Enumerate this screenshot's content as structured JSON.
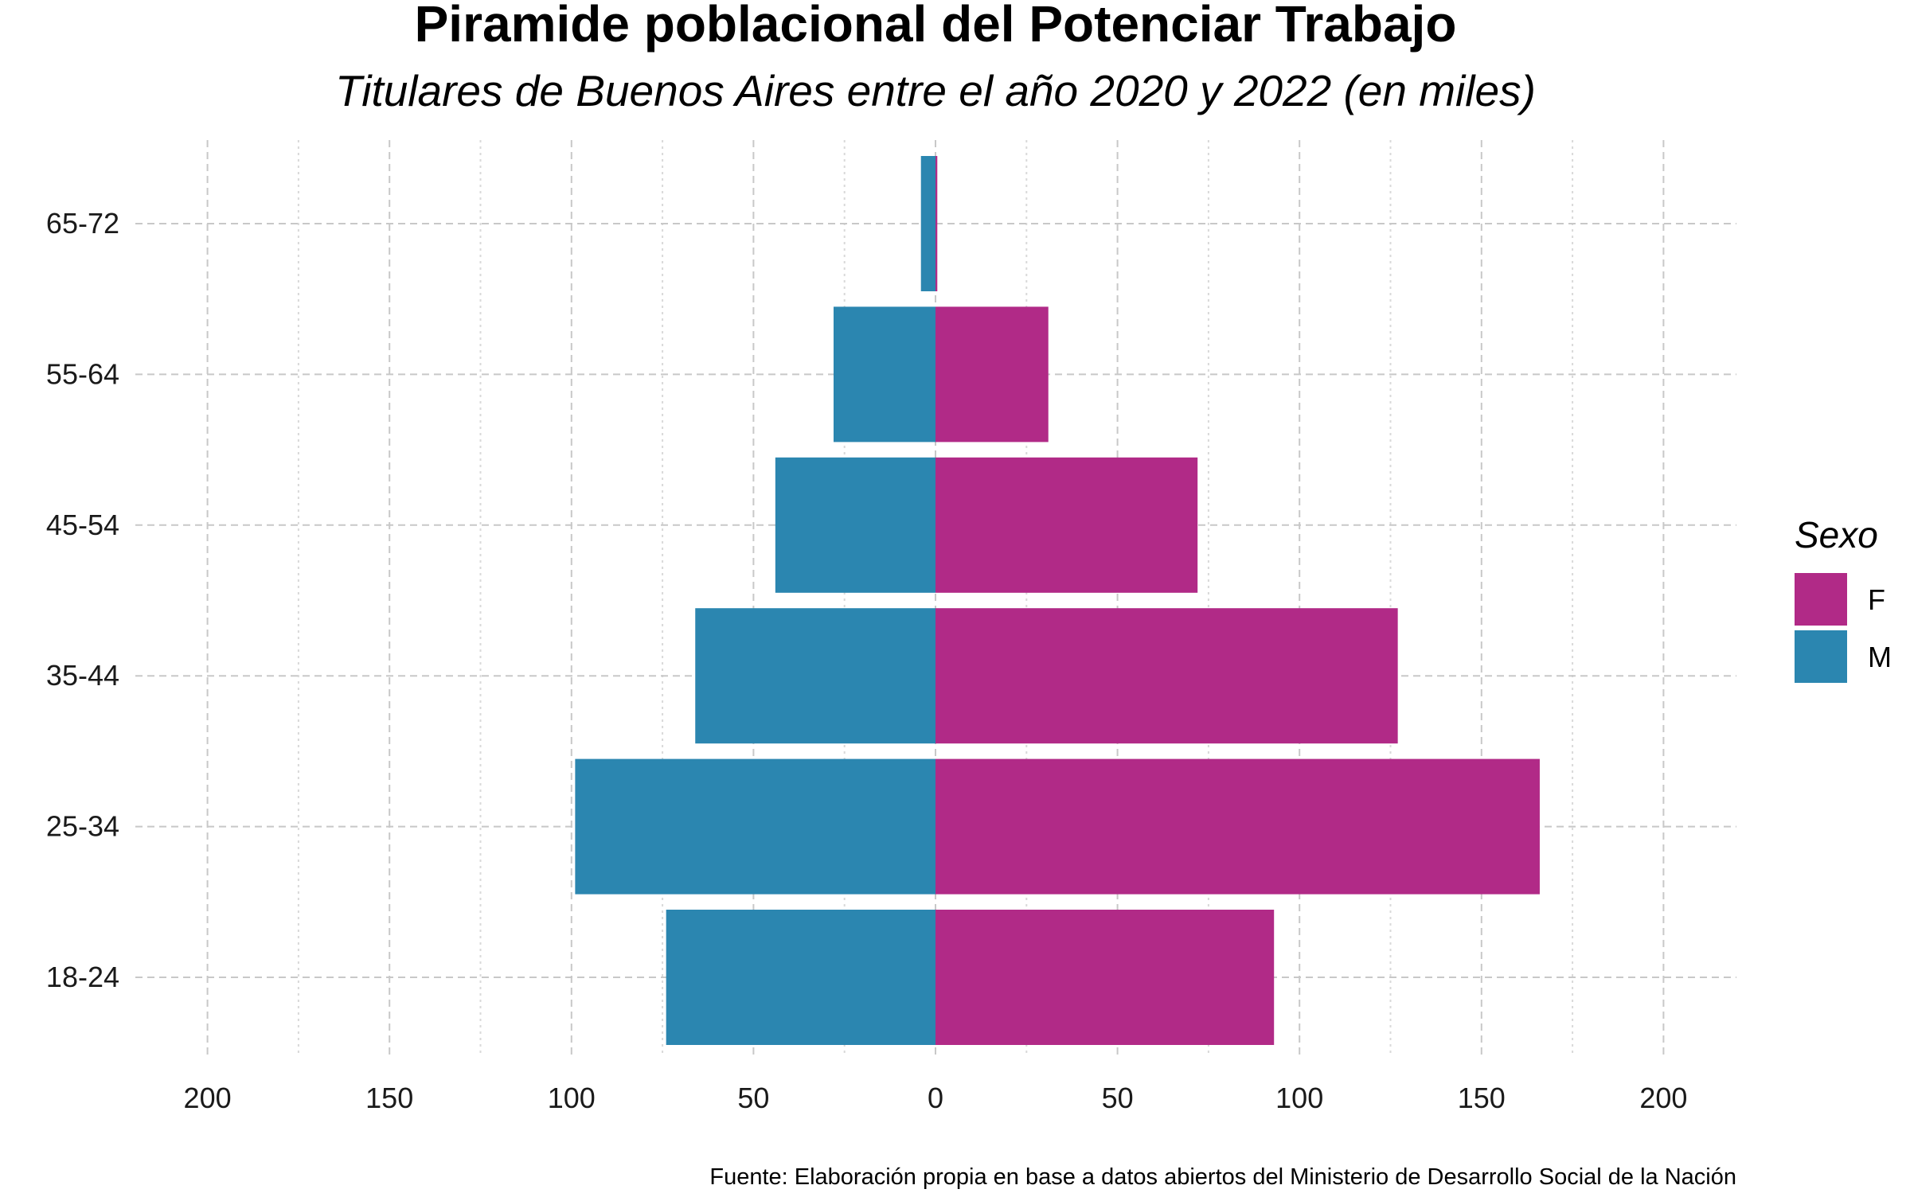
{
  "chart_data": {
    "type": "bar",
    "orientation": "horizontal",
    "title": "Piramide poblacional del Potenciar Trabajo",
    "subtitle": "Titulares de Buenos Aires entre el año 2020 y 2022 (en miles)",
    "caption": "Fuente: Elaboración propia en base a datos abiertos del Ministerio de Desarrollo Social de la Nación",
    "categories": [
      "18-24",
      "25-34",
      "35-44",
      "45-54",
      "55-64",
      "65-72"
    ],
    "series": [
      {
        "name": "F",
        "color": "#B12A87",
        "direction": "right",
        "values": [
          93,
          166,
          127,
          72,
          31,
          0.5
        ]
      },
      {
        "name": "M",
        "color": "#2B86B0",
        "direction": "left",
        "values": [
          74,
          99,
          66,
          44,
          28,
          4
        ]
      }
    ],
    "xlim": [
      -220,
      220
    ],
    "x_ticks": [
      -200,
      -150,
      -100,
      -50,
      0,
      50,
      100,
      150,
      200
    ],
    "x_tick_labels": [
      "200",
      "150",
      "100",
      "50",
      "0",
      "50",
      "100",
      "150",
      "200"
    ],
    "grid": true,
    "legend": {
      "title": "Sexo",
      "position": "right",
      "entries": [
        "F",
        "M"
      ]
    }
  }
}
